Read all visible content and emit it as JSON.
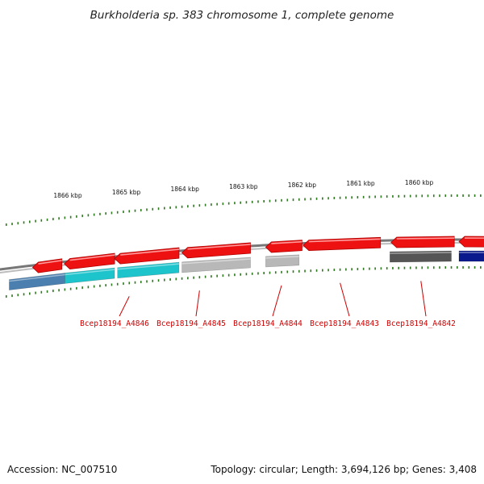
{
  "title": "Burkholderia sp. 383 chromosome 1, complete genome",
  "accession": "Accession: NC_007510",
  "summary": "Topology: circular; Length: 3,694,126 bp; Genes: 3,408",
  "colors": {
    "backbone": "#8a8a8a",
    "forward_gene": "#ee1111",
    "tick": "#2d7a1e",
    "label": "#cc0000",
    "leader": "#cc0000",
    "reverse_blue": "#4a7fb0",
    "reverse_cyan": "#1ec4cc",
    "reverse_lightgray": "#b8b8b8",
    "reverse_darkgray": "#555555",
    "reverse_navy": "#0a1a8c"
  },
  "scale": {
    "unit": "kbp",
    "labels": [
      {
        "pos_kbp": 1866,
        "text": "1866 kbp"
      },
      {
        "pos_kbp": 1865,
        "text": "1865 kbp"
      },
      {
        "pos_kbp": 1864,
        "text": "1864 kbp"
      },
      {
        "pos_kbp": 1863,
        "text": "1863 kbp"
      },
      {
        "pos_kbp": 1862,
        "text": "1862 kbp"
      },
      {
        "pos_kbp": 1861,
        "text": "1861 kbp"
      },
      {
        "pos_kbp": 1860,
        "text": "1860 kbp"
      }
    ]
  },
  "genes_forward_strand": [
    {
      "start_kbp": 1866.6,
      "end_kbp": 1866.1,
      "color": "#ee1111"
    },
    {
      "start_kbp": 1866.06,
      "end_kbp": 1865.2,
      "color": "#ee1111"
    },
    {
      "start_kbp": 1865.2,
      "end_kbp": 1864.1,
      "color": "#ee1111"
    },
    {
      "start_kbp": 1864.05,
      "end_kbp": 1862.88,
      "color": "#ee1111"
    },
    {
      "start_kbp": 1862.62,
      "end_kbp": 1862.0,
      "color": "#ee1111"
    },
    {
      "start_kbp": 1861.98,
      "end_kbp": 1860.66,
      "color": "#ee1111"
    },
    {
      "start_kbp": 1860.48,
      "end_kbp": 1859.4,
      "color": "#ee1111"
    },
    {
      "start_kbp": 1859.32,
      "end_kbp": 1858.5,
      "color": "#ee1111"
    }
  ],
  "genes_reverse_strand": [
    {
      "start_kbp": 1867.0,
      "end_kbp": 1866.05,
      "color": "#4a7fb0"
    },
    {
      "start_kbp": 1866.05,
      "end_kbp": 1865.2,
      "color": "#1ec4cc"
    },
    {
      "start_kbp": 1865.15,
      "end_kbp": 1864.1,
      "color": "#1ec4cc"
    },
    {
      "start_kbp": 1864.05,
      "end_kbp": 1862.88,
      "color": "#b8b8b8"
    },
    {
      "start_kbp": 1862.62,
      "end_kbp": 1862.05,
      "color": "#b8b8b8"
    },
    {
      "start_kbp": 1860.5,
      "end_kbp": 1859.45,
      "color": "#555555"
    },
    {
      "start_kbp": 1859.32,
      "end_kbp": 1858.5,
      "color": "#0a1a8c"
    }
  ],
  "gene_labels": [
    {
      "text": "Bcep18194_A4846",
      "anchor_kbp": 1864.95
    },
    {
      "text": "Bcep18194_A4845",
      "anchor_kbp": 1863.75
    },
    {
      "text": "Bcep18194_A4844",
      "anchor_kbp": 1862.35
    },
    {
      "text": "Bcep18194_A4843",
      "anchor_kbp": 1861.35
    },
    {
      "text": "Bcep18194_A4842",
      "anchor_kbp": 1859.97
    }
  ]
}
